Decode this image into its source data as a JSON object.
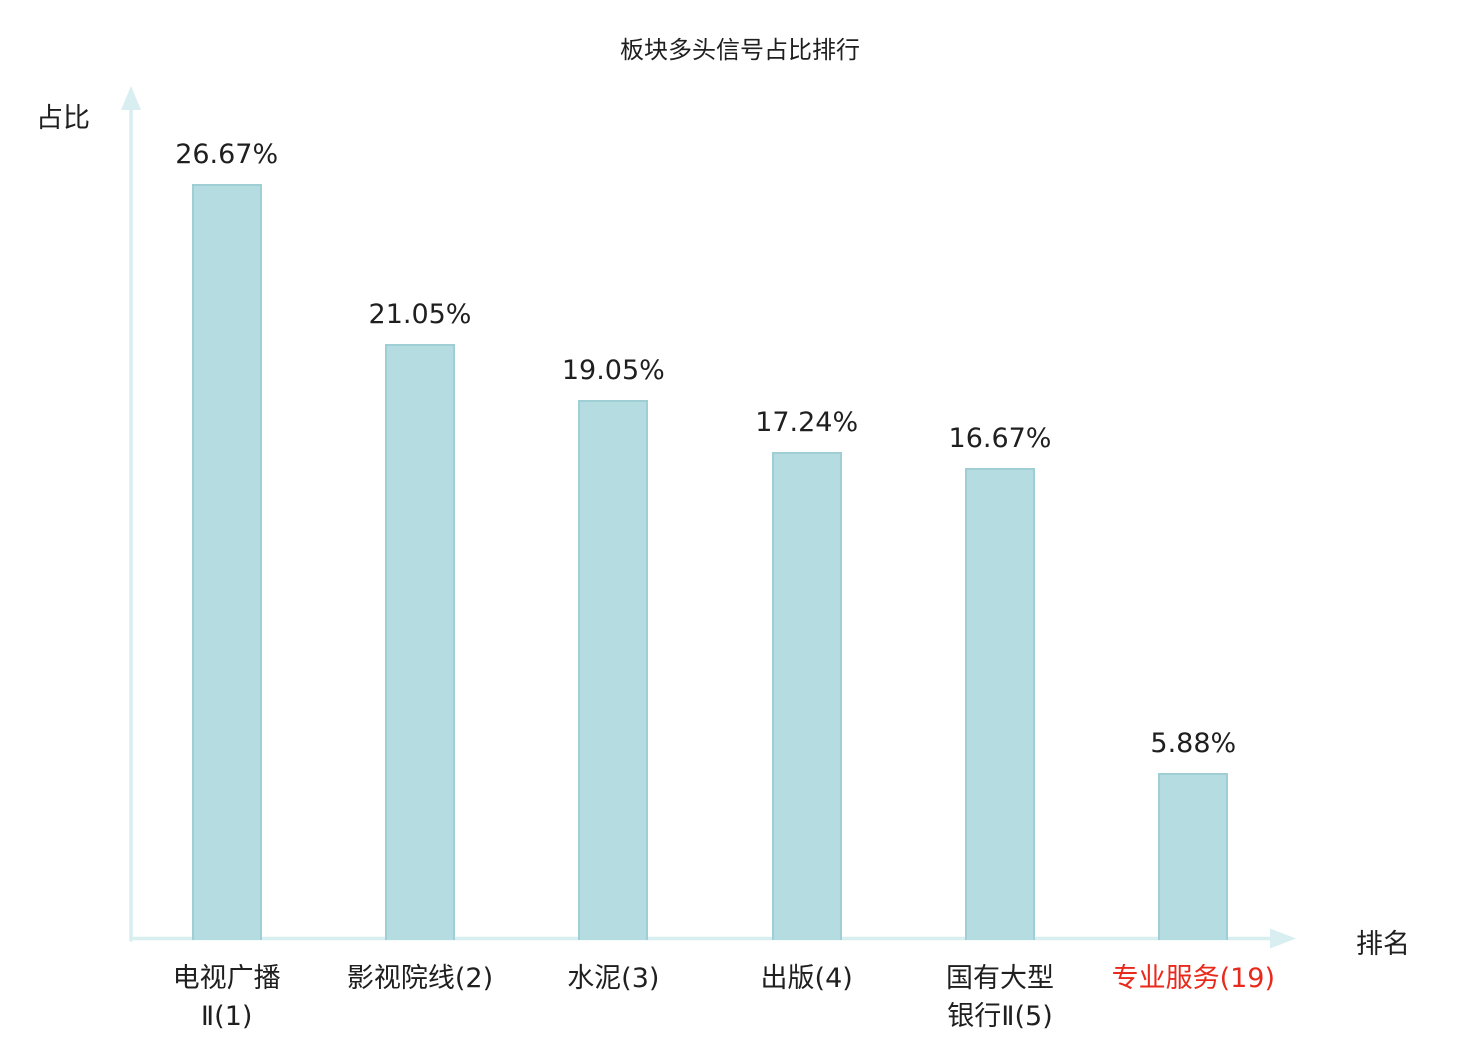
{
  "chart_data": {
    "type": "bar",
    "title": "板块多头信号占比排行",
    "xlabel": "排名",
    "ylabel": "占比",
    "categories": [
      "电视广播Ⅱ(1)",
      "影视院线(2)",
      "水泥(3)",
      "出版(4)",
      "国有大型银行Ⅱ(5)",
      "专业服务(19)"
    ],
    "tick_labels": [
      "电视广播\nⅡ(1)",
      "影视院线(2)",
      "水泥(3)",
      "出版(4)",
      "国有大型\n银行Ⅱ(5)",
      "专业服务(19)"
    ],
    "values": [
      26.67,
      21.05,
      19.05,
      17.24,
      16.67,
      5.88
    ],
    "value_labels": [
      "26.67%",
      "21.05%",
      "19.05%",
      "17.24%",
      "16.67%",
      "5.88%"
    ],
    "highlight_index": 5,
    "ylim": [
      0,
      30
    ],
    "grid": false,
    "legend": false,
    "colors": {
      "bar_fill": "#b5dce1",
      "bar_border": "#9fced5",
      "axis": "#d8eef0",
      "text": "#1f1f1f",
      "highlight_text": "#e8291c"
    }
  }
}
